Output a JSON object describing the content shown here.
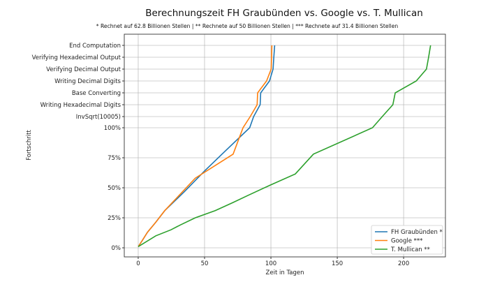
{
  "chart_data": {
    "type": "line",
    "title": "Berechnungszeit FH Graubünden vs. Google vs. T. Mullican",
    "subtitle": "* Rechnet auf 62.8 Billionen Stellen | ** Rechnete auf 50 Billionen Stellen | *** Rechnete auf 31.4 Billionen Stellen",
    "xlabel": "Zeit in Tagen",
    "ylabel": "Fortschritt",
    "xlim": [
      -10.5,
      231.5
    ],
    "xticks": [
      0,
      50,
      100,
      150,
      200
    ],
    "y_percent_ticks": [
      "0%",
      "25%",
      "50%",
      "75%",
      "100%"
    ],
    "y_stages": [
      "InvSqrt(10005)",
      "Writing Hexadecimal Digits",
      "Base Converting",
      "Writing Decimal Digits",
      "Verifying Decimal Output",
      "Verifying Hexadecimal Output",
      "End Computation"
    ],
    "grid": true,
    "legend_position": "lower-right",
    "series": [
      {
        "name": "FH Graubünden *",
        "color": "#1f77b4",
        "points": [
          [
            0,
            1
          ],
          [
            3,
            6
          ],
          [
            7,
            13
          ],
          [
            13,
            21
          ],
          [
            20,
            31
          ],
          [
            35,
            47
          ],
          [
            50,
            64
          ],
          [
            65,
            80
          ],
          [
            84,
            100
          ],
          [
            87,
            "InvSqrt(10005)"
          ],
          [
            91.9,
            "Writing Hexadecimal Digits"
          ],
          [
            92.3,
            "Base Converting"
          ],
          [
            98.9,
            "Writing Decimal Digits"
          ],
          [
            101.6,
            "Verifying Decimal Output"
          ],
          [
            102.2,
            "Verifying Hexadecimal Output"
          ],
          [
            102.8,
            "End Computation"
          ]
        ]
      },
      {
        "name": "Google ***",
        "color": "#ff7f0e",
        "points": [
          [
            0,
            1
          ],
          [
            3,
            6
          ],
          [
            7,
            13
          ],
          [
            13,
            21
          ],
          [
            20,
            31
          ],
          [
            43,
            58
          ],
          [
            71.5,
            78
          ],
          [
            79,
            100
          ],
          [
            84.4,
            "InvSqrt(10005)"
          ],
          [
            89.6,
            "Writing Hexadecimal Digits"
          ],
          [
            90,
            "Base Converting"
          ],
          [
            96.7,
            "Writing Decimal Digits"
          ],
          [
            100.2,
            "Verifying Decimal Output"
          ],
          [
            100.5,
            "Verifying Hexadecimal Output"
          ],
          [
            100.7,
            "End Computation"
          ]
        ]
      },
      {
        "name": "T. Mullican **",
        "color": "#2ca02c",
        "points": [
          [
            0,
            1
          ],
          [
            13.3,
            10
          ],
          [
            24.7,
            15
          ],
          [
            31.7,
            19
          ],
          [
            43,
            25
          ],
          [
            58,
            31
          ],
          [
            71,
            37.5
          ],
          [
            83.4,
            44
          ],
          [
            99,
            52
          ],
          [
            118.4,
            61.5
          ],
          [
            132,
            78
          ],
          [
            176.5,
            100
          ],
          [
            183.9,
            "InvSqrt(10005)"
          ],
          [
            191.9,
            "Writing Hexadecimal Digits"
          ],
          [
            193.7,
            "Base Converting"
          ],
          [
            209.5,
            "Writing Decimal Digits"
          ],
          [
            217.2,
            "Verifying Decimal Output"
          ],
          [
            218.8,
            "Verifying Hexadecimal Output"
          ],
          [
            220.3,
            "End Computation"
          ]
        ]
      }
    ]
  }
}
